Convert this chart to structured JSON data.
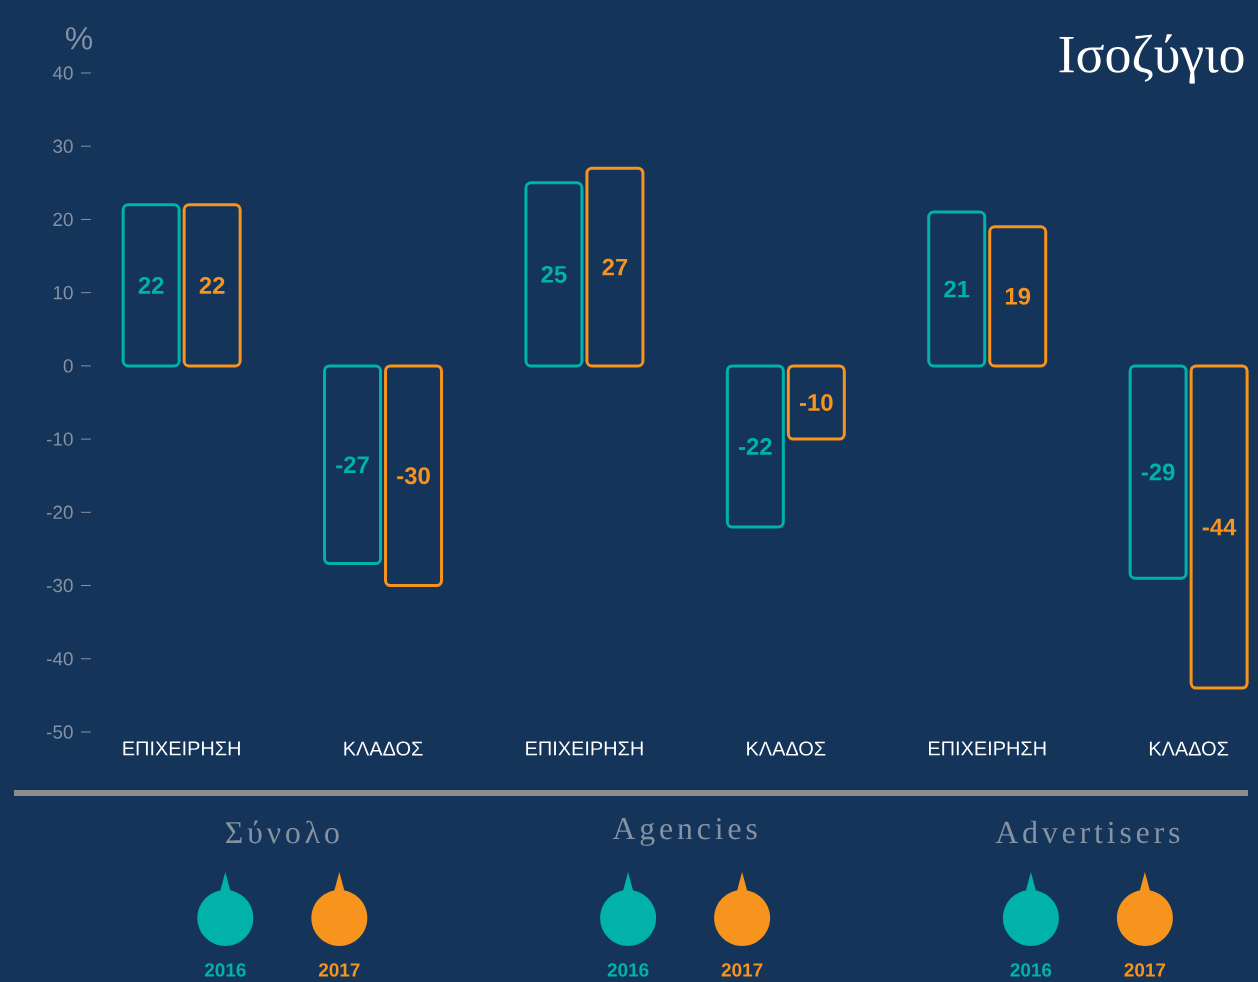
{
  "chart_data": {
    "type": "bar",
    "title": "Ισοζύγιο",
    "ylabel": "%",
    "categories": [
      "ΕΠΙΧΕΙΡΗΣΗ",
      "ΚΛΑΔΟΣ",
      "ΕΠΙΧΕΙΡΗΣΗ",
      "ΚΛΑΔΟΣ",
      "ΕΠΙΧΕΙΡΗΣΗ",
      "ΚΛΑΔΟΣ"
    ],
    "series": [
      {
        "name": "2016",
        "color": "#00b2a9",
        "values": [
          22,
          -27,
          25,
          -22,
          21,
          -29
        ]
      },
      {
        "name": "2017",
        "color": "#f7941d",
        "values": [
          22,
          -30,
          27,
          -10,
          19,
          -44
        ]
      }
    ],
    "ylim": [
      -50,
      40
    ],
    "yticks": [
      -50,
      -40,
      -30,
      -20,
      -10,
      0,
      10,
      20,
      30,
      40
    ],
    "data_labels": true,
    "legend": "bottom",
    "annotations": [
      "Σύνολο",
      "Agencies",
      "Advertisers"
    ]
  }
}
